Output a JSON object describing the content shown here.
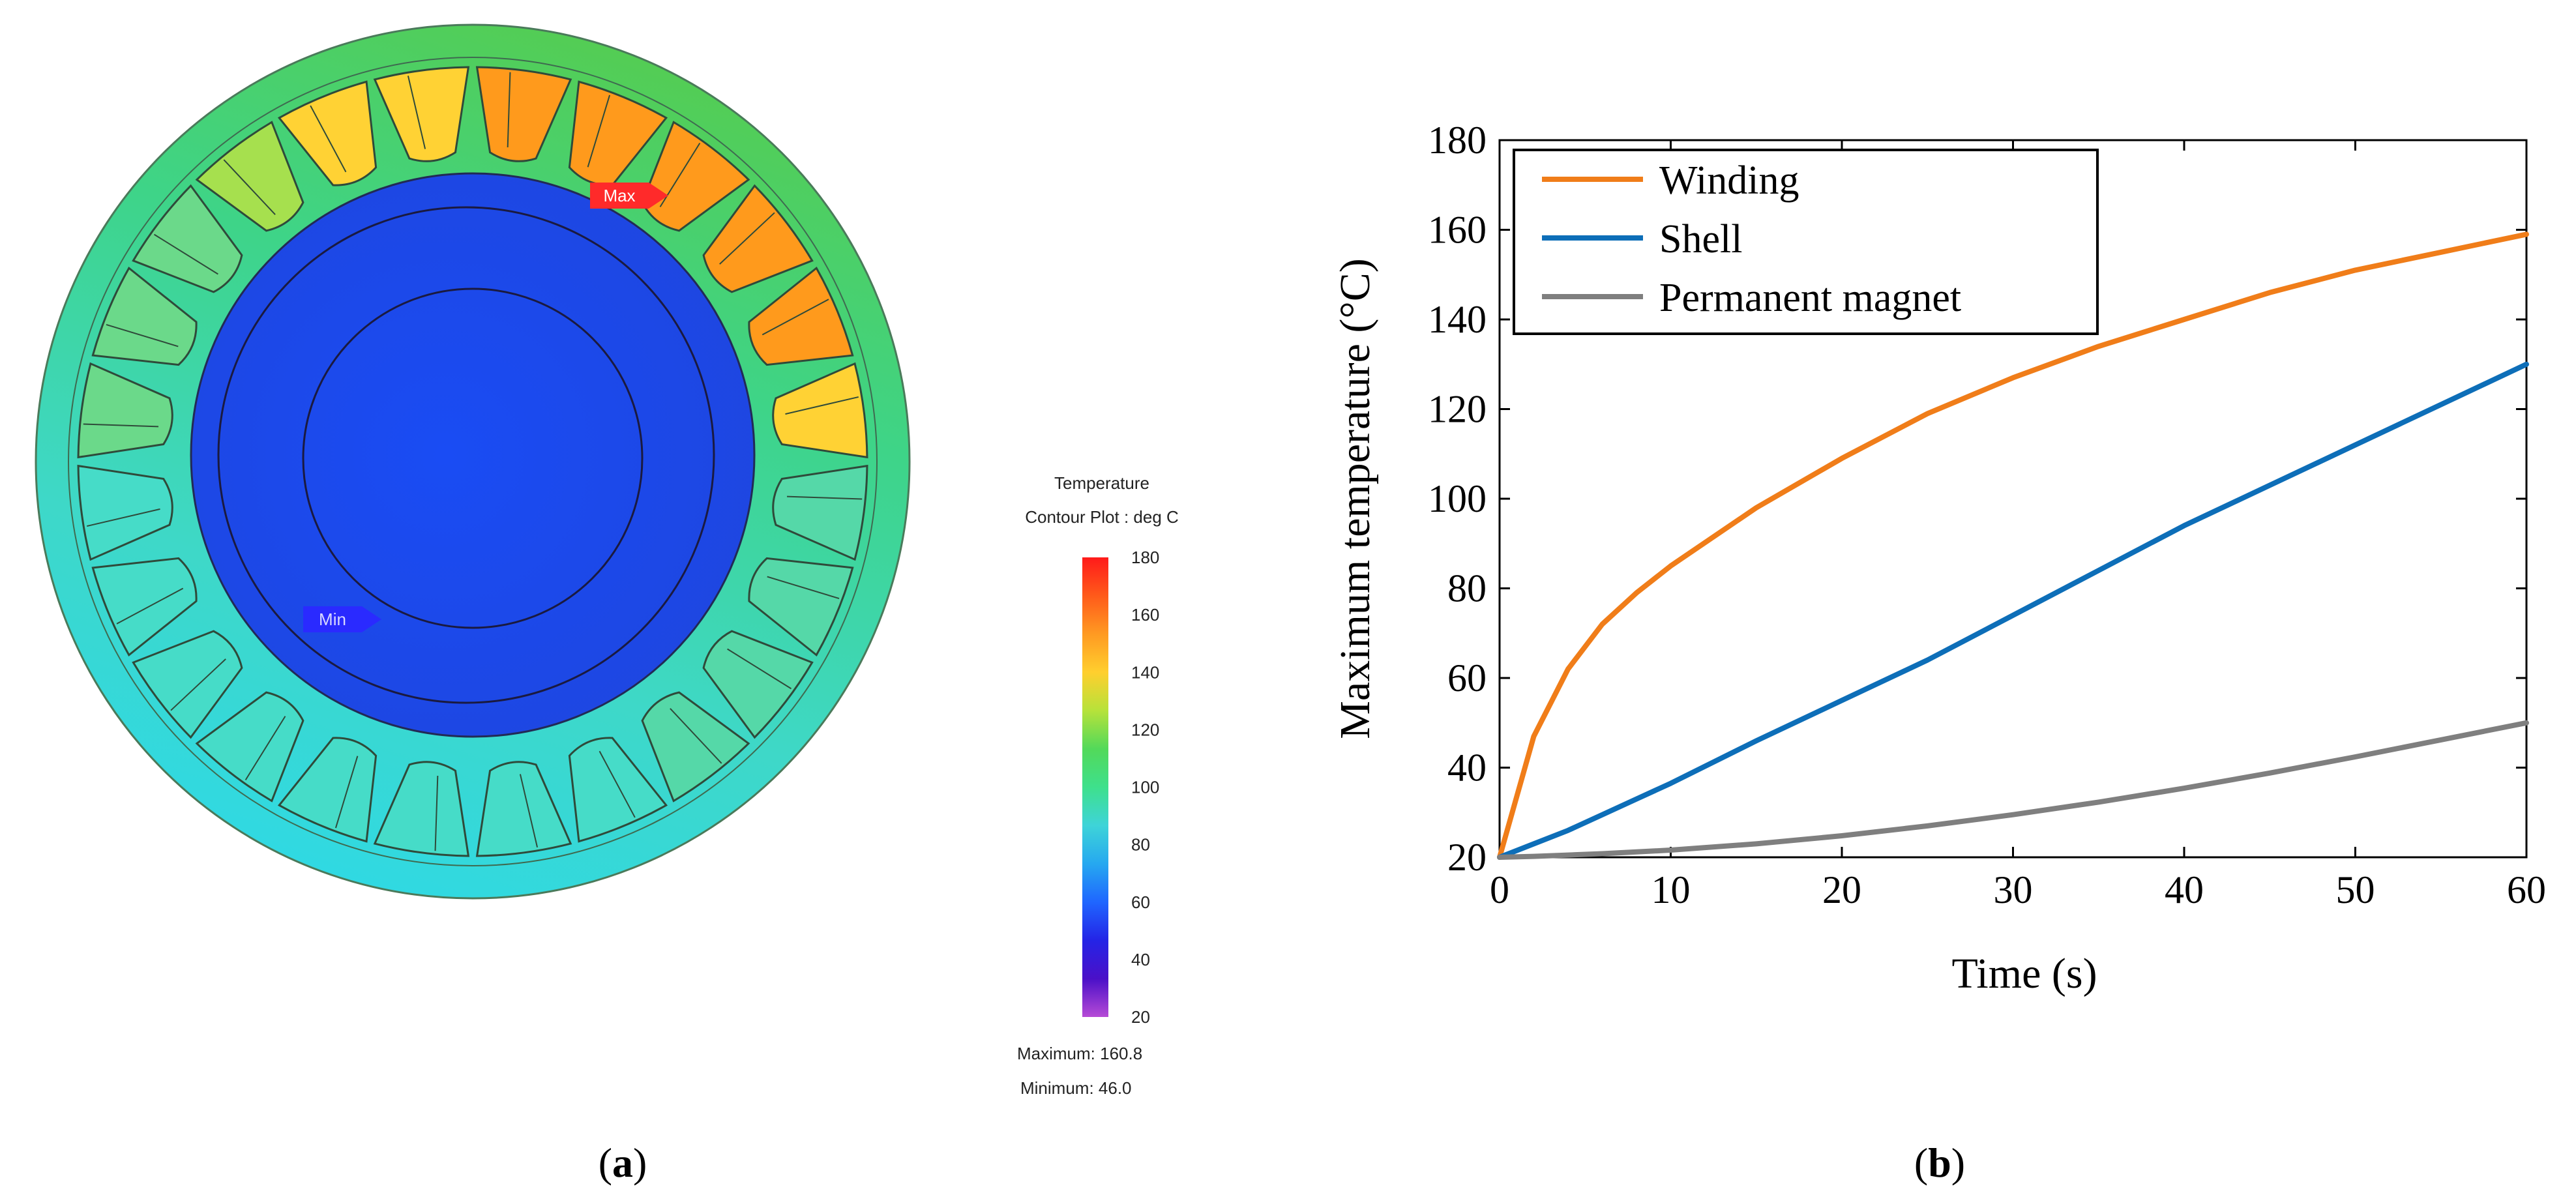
{
  "panel_a": {
    "label_open": "(",
    "label_letter": "a",
    "label_close": ")",
    "max_marker": "Max",
    "min_marker": "Min",
    "legend_title": "Temperature",
    "legend_subtitle": "Contour Plot : deg C",
    "legend_ticks": [
      "180",
      "160",
      "140",
      "120",
      "100",
      "80",
      "60",
      "40",
      "20"
    ],
    "maximum_text": "Maximum: 160.8",
    "minimum_text": "Minimum: 46.0",
    "colors": {
      "outer_ring": "#4fd08a",
      "slot_hot": "#ff9a1c",
      "slot_warm": "#ffd234",
      "slot_cool": "#6ee0ae",
      "rotor": "#1d4cf0",
      "max_marker": "#ff2a2a",
      "min_marker": "#2a2aff"
    },
    "colorbar_colors": [
      "#ff1a1a",
      "#ff5a1a",
      "#ff9a22",
      "#ffcf2e",
      "#b7e23a",
      "#52d95a",
      "#3ee08c",
      "#3ed4d8",
      "#26a8f0",
      "#1f66ff",
      "#2424e6",
      "#4b10c8",
      "#b64ad6"
    ]
  },
  "panel_b": {
    "label_open": "(",
    "label_letter": "b",
    "label_close": ")"
  },
  "chart_data": {
    "type": "line",
    "title": "",
    "xlabel": "Time (s)",
    "ylabel": "Maximum temperature (°C)",
    "xlim": [
      0,
      60
    ],
    "ylim": [
      20,
      180
    ],
    "xticks": [
      0,
      10,
      20,
      30,
      40,
      50,
      60
    ],
    "yticks": [
      20,
      40,
      60,
      80,
      100,
      120,
      140,
      160,
      180
    ],
    "grid": false,
    "legend_position": "top-left",
    "x": [
      0,
      2,
      4,
      6,
      8,
      10,
      15,
      20,
      25,
      30,
      35,
      40,
      45,
      50,
      55,
      60
    ],
    "series": [
      {
        "name": "Winding",
        "color": "#f07d19",
        "values": [
          20,
          47,
          62,
          72,
          79,
          85,
          98,
          109,
          119,
          127,
          134,
          140,
          146,
          151,
          155,
          159
        ]
      },
      {
        "name": "Shell",
        "color": "#0d6eb8",
        "values": [
          20,
          23,
          26,
          29.5,
          33,
          36.5,
          46,
          55,
          64,
          74,
          84,
          94,
          103,
          112,
          121,
          130
        ]
      },
      {
        "name": "Permanent magnet",
        "color": "#7f7f7f",
        "values": [
          20,
          20.2,
          20.5,
          20.8,
          21.2,
          21.6,
          23,
          24.8,
          27,
          29.5,
          32.3,
          35.4,
          38.8,
          42.4,
          46.2,
          50
        ]
      }
    ]
  }
}
